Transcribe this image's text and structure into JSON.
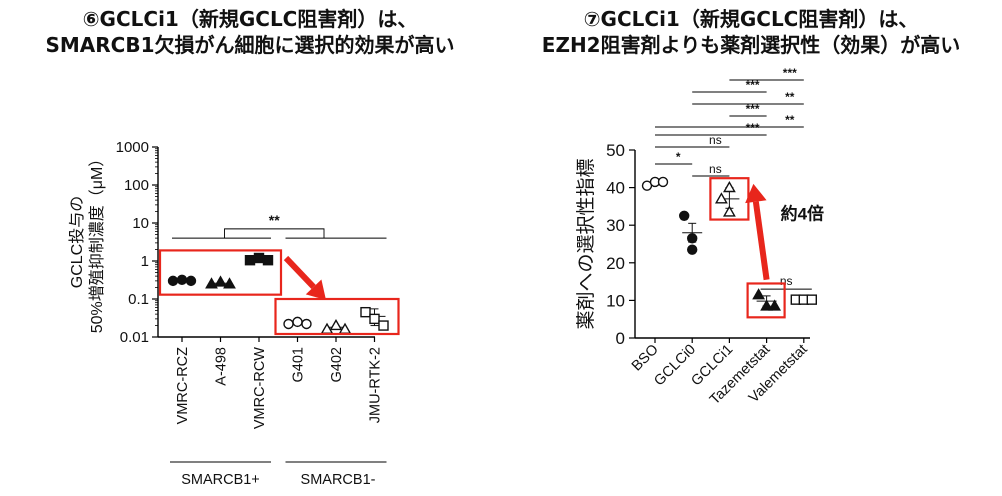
{
  "titles": {
    "left_line1": "⑥GCLCi1（新規GCLC阻害剤）は、",
    "left_line2": "SMARCB1欠損がん細胞に選択的効果が高い",
    "right_line1": "⑦GCLCi1（新規GCLC阻害剤）は、",
    "right_line2": "EZH2阻害剤よりも薬剤選択性（効果）が高い"
  },
  "chart_data": [
    {
      "type": "scatter",
      "title": "",
      "ylabel_line1": "GCLC投与の",
      "ylabel_line2": "50%増殖抑制濃度（μM）",
      "yscale": "log",
      "ylim": [
        0.01,
        1000
      ],
      "yticks": [
        1000,
        100,
        10,
        1,
        0.1,
        0.01
      ],
      "ytick_labels": [
        "1000",
        "100",
        "10",
        "1",
        "0.1",
        "0.01"
      ],
      "categories": [
        "VMRC-RCZ",
        "A-498",
        "VMRC-RCW",
        "G401",
        "G402",
        "JMU-RTK-2"
      ],
      "groups": [
        {
          "label": "SMARCB1+",
          "categories": [
            "VMRC-RCZ",
            "A-498",
            "VMRC-RCW"
          ]
        },
        {
          "label": "SMARCB1-",
          "categories": [
            "G401",
            "G402",
            "JMU-RTK-2"
          ]
        }
      ],
      "series": [
        {
          "category": "VMRC-RCZ",
          "marker": "circle",
          "filled": true,
          "values": [
            0.3,
            0.32,
            0.3
          ],
          "mean": 0.31
        },
        {
          "category": "A-498",
          "marker": "triangle",
          "filled": true,
          "values": [
            0.25,
            0.28,
            0.25
          ],
          "mean": 0.26
        },
        {
          "category": "VMRC-RCW",
          "marker": "square",
          "filled": true,
          "values": [
            1.05,
            1.2,
            1.05
          ],
          "mean": 1.1
        },
        {
          "category": "G401",
          "marker": "circle",
          "filled": false,
          "values": [
            0.022,
            0.025,
            0.022
          ],
          "mean": 0.023
        },
        {
          "category": "G402",
          "marker": "triangle",
          "filled": false,
          "values": [
            0.016,
            0.02,
            0.016
          ],
          "mean": 0.018
        },
        {
          "category": "JMU-RTK-2",
          "marker": "square",
          "filled": false,
          "values": [
            0.045,
            0.03,
            0.02
          ],
          "mean": 0.035,
          "err": [
            0.02,
            0.055
          ]
        }
      ],
      "significance": [
        {
          "text": "**",
          "between": [
            "SMARCB1+",
            "SMARCB1-"
          ]
        }
      ],
      "colors": {
        "marker": "#111111",
        "highlight": "#e8261c"
      }
    },
    {
      "type": "scatter",
      "title": "",
      "ylabel": "薬剤への選択性指標",
      "ylim": [
        0,
        50
      ],
      "yticks": [
        0,
        10,
        20,
        30,
        40,
        50
      ],
      "ytick_labels": [
        "0",
        "10",
        "20",
        "30",
        "40",
        "50"
      ],
      "categories": [
        "BSO",
        "GCLCi0",
        "GCLCi1",
        "Tazemetstat",
        "Valemetstat"
      ],
      "series": [
        {
          "category": "BSO",
          "marker": "circle",
          "filled": false,
          "values": [
            40.5,
            41.5,
            41.5
          ],
          "mean": 41.2
        },
        {
          "category": "GCLCi0",
          "marker": "circle",
          "filled": true,
          "values": [
            32.5,
            26.5,
            23.5
          ],
          "mean": 28,
          "err": [
            25.5,
            30.5
          ]
        },
        {
          "category": "GCLCi1",
          "marker": "triangle",
          "filled": false,
          "values": [
            40,
            37,
            33.5
          ],
          "mean": 37,
          "err": [
            34.5,
            40
          ]
        },
        {
          "category": "Tazemetstat",
          "marker": "triangle",
          "filled": true,
          "values": [
            11.5,
            8.5,
            8.5
          ],
          "mean": 9.8,
          "err": [
            8.5,
            11.2
          ]
        },
        {
          "category": "Valemetstat",
          "marker": "square",
          "filled": false,
          "values": [
            10.2,
            10.2,
            10.2
          ],
          "mean": 10.2
        }
      ],
      "significance": [
        {
          "text": "*",
          "between": [
            "BSO",
            "GCLCi0"
          ]
        },
        {
          "text": "ns",
          "between": [
            "GCLCi0",
            "GCLCi1"
          ]
        },
        {
          "text": "ns",
          "between": [
            "BSO",
            "GCLCi1"
          ]
        },
        {
          "text": "***",
          "between": [
            "BSO",
            "Tazemetstat"
          ]
        },
        {
          "text": "***",
          "between": [
            "GCLCi1",
            "Tazemetstat"
          ]
        },
        {
          "text": "**",
          "between": [
            "BSO",
            "Valemetstat"
          ]
        },
        {
          "text": "**",
          "between": [
            "GCLCi0",
            "Valemetstat"
          ]
        },
        {
          "text": "***",
          "between": [
            "GCLCi0",
            "Tazemetstat"
          ]
        },
        {
          "text": "***",
          "between": [
            "GCLCi1",
            "Valemetstat"
          ]
        },
        {
          "text": "ns",
          "between": [
            "Tazemetstat",
            "Valemetstat"
          ]
        }
      ],
      "annotations": [
        {
          "text": "約4倍"
        }
      ],
      "colors": {
        "marker": "#111111",
        "highlight": "#e8261c"
      }
    }
  ]
}
